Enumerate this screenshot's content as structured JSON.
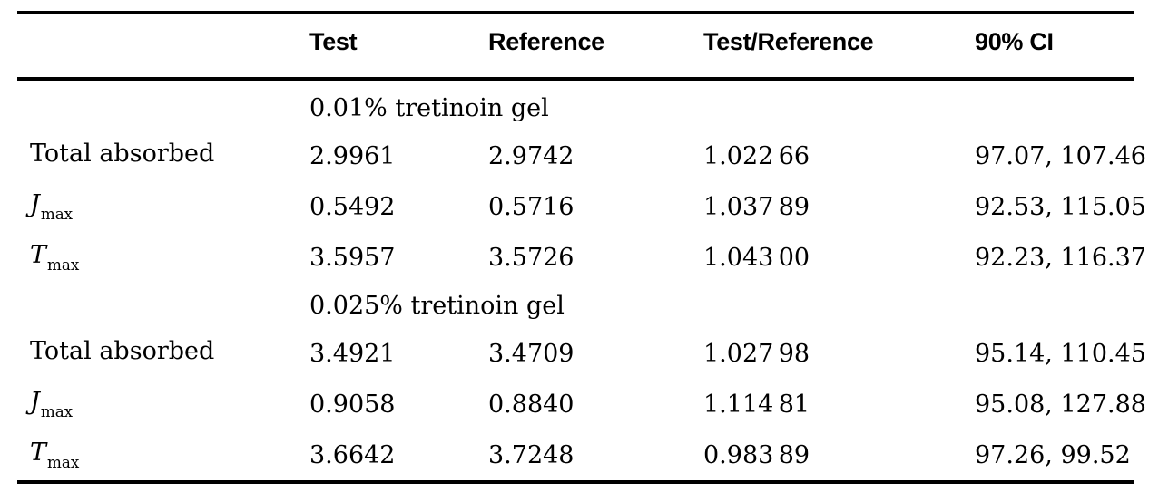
{
  "page": {
    "background": "#ffffff",
    "text_color": "#000000",
    "rule_color": "#000000"
  },
  "table": {
    "header": {
      "param": "",
      "test": "Test",
      "reference": "Reference",
      "ratio": "Test/Reference",
      "ci": "90% CI"
    },
    "groups": [
      {
        "label": "0.01% tretinoin gel",
        "rows": [
          {
            "param": "Total absorbed",
            "param_sub": "",
            "test": "2.9961",
            "reference": "2.9742",
            "ratio": "1.022 66",
            "ci": "97.07, 107.46"
          },
          {
            "param": "J",
            "param_sub": "max",
            "test": "0.5492",
            "reference": "0.5716",
            "ratio": "1.037 89",
            "ci": "92.53, 115.05"
          },
          {
            "param": "T",
            "param_sub": "max",
            "test": "3.5957",
            "reference": "3.5726",
            "ratio": "1.043 00",
            "ci": "92.23, 116.37"
          }
        ]
      },
      {
        "label": "0.025% tretinoin gel",
        "rows": [
          {
            "param": "Total absorbed",
            "param_sub": "",
            "test": "3.4921",
            "reference": "3.4709",
            "ratio": "1.027 98",
            "ci": "95.14, 110.45"
          },
          {
            "param": "J",
            "param_sub": "max",
            "test": "0.9058",
            "reference": "0.8840",
            "ratio": "1.114 81",
            "ci": "95.08, 127.88"
          },
          {
            "param": "T",
            "param_sub": "max",
            "test": "3.6642",
            "reference": "3.7248",
            "ratio": "0.983 89",
            "ci": "97.26, 99.52"
          }
        ]
      }
    ]
  }
}
